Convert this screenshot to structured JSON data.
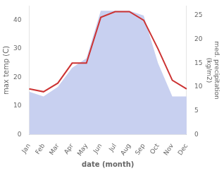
{
  "chart_data": {
    "type": "line",
    "categories": [
      "Jan",
      "Feb",
      "Mar",
      "Apr",
      "May",
      "Jun",
      "Jul",
      "Aug",
      "Sep",
      "Oct",
      "Nov",
      "Dec"
    ],
    "series": [
      {
        "type": "area",
        "color": "#c8d0f0",
        "axis": "y2",
        "values": [
          9,
          8,
          10,
          14,
          16,
          26,
          26,
          26,
          25,
          15,
          8,
          8
        ]
      },
      {
        "type": "line",
        "color": "#cc3333",
        "values": [
          16,
          15,
          18,
          25,
          25,
          41,
          43,
          43,
          40,
          30,
          19,
          16
        ]
      }
    ],
    "xlabel": "date (month)",
    "ylabel": "max temp (C)",
    "y2label": "med. precipitation\n(kg/m2)",
    "ylim": [
      0,
      45
    ],
    "yticks": [
      0,
      10,
      20,
      30,
      40
    ],
    "y2lim": [
      0,
      27
    ],
    "y2ticks": [
      0,
      5,
      10,
      15,
      20,
      25
    ],
    "grid": false
  }
}
